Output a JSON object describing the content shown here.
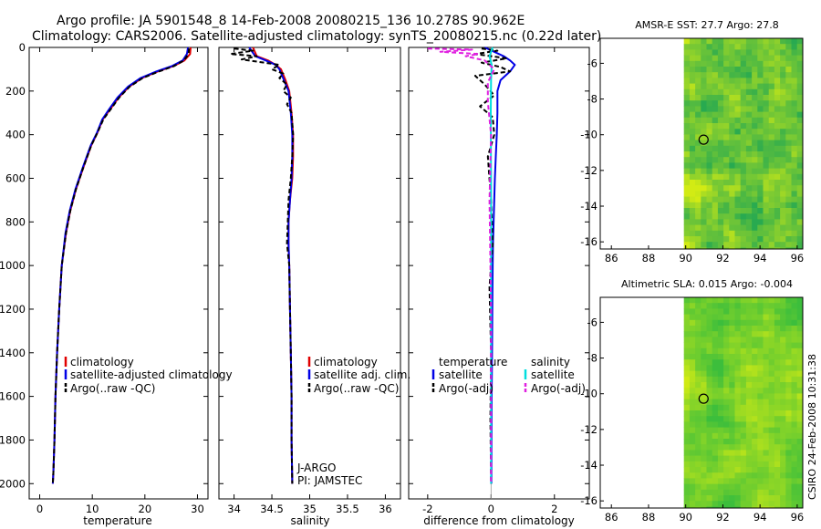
{
  "header": {
    "title_line1": "Argo profile: JA 5901548_8 14-Feb-2008 20080215_136 10.278S 90.962E",
    "title_line2": "Climatology: CARS2006. Satellite-adjusted climatology: synTS_20080215.nc (0.22d later)"
  },
  "side_label": "CSIRO 24-Feb-2008 10:31:38",
  "colors": {
    "climatology": "#e00000",
    "satellite": "#0000e6",
    "argo": "#000000",
    "satellite_cyan": "#00dede",
    "argo_magenta": "#e020e0"
  },
  "chart_data": [
    {
      "type": "line",
      "panel": "temperature",
      "xlabel": "temperature",
      "ylabel": "",
      "xlim": [
        -2,
        32
      ],
      "ylim": [
        2070,
        0
      ],
      "xticks": [
        0,
        10,
        20,
        30
      ],
      "yticks": [
        0,
        200,
        400,
        600,
        800,
        1000,
        1200,
        1400,
        1600,
        1800,
        2000
      ],
      "legend": [
        "climatology",
        "satellite-adjusted climatology",
        "Argo(..raw -QC)"
      ],
      "series": [
        {
          "name": "climatology",
          "color": "#e00000",
          "dash": "",
          "x": [
            28.7,
            28.6,
            27.5,
            25.5,
            22.5,
            19.5,
            17,
            15,
            13.5,
            12,
            11,
            9.8,
            8.3,
            6.9,
            5.8,
            5,
            4.2,
            3.7,
            3.3,
            3,
            2.8,
            2.6,
            2.5
          ],
          "y": [
            0,
            30,
            60,
            85,
            110,
            140,
            180,
            230,
            280,
            330,
            390,
            450,
            550,
            650,
            750,
            850,
            1000,
            1200,
            1400,
            1600,
            1800,
            1950,
            2000
          ]
        },
        {
          "name": "satellite-adjusted climatology",
          "color": "#0000e6",
          "dash": "",
          "x": [
            28.2,
            28,
            27.2,
            25.2,
            22.2,
            19.2,
            16.8,
            14.8,
            13.3,
            11.9,
            10.9,
            9.7,
            8.2,
            6.8,
            5.7,
            4.9,
            4.2,
            3.7,
            3.3,
            3,
            2.8,
            2.6,
            2.5
          ],
          "y": [
            0,
            30,
            60,
            85,
            110,
            140,
            180,
            230,
            280,
            330,
            390,
            450,
            550,
            650,
            750,
            850,
            1000,
            1200,
            1400,
            1600,
            1800,
            1950,
            2000
          ]
        },
        {
          "name": "Argo(..raw -QC)",
          "color": "#000000",
          "dash": "5,3",
          "x": [
            28.4,
            28.3,
            27.4,
            25.6,
            22.7,
            19.6,
            17.1,
            15.1,
            13.6,
            12.1,
            11,
            9.8,
            8.3,
            6.9,
            5.8,
            5,
            4.2,
            3.7,
            3.3,
            3,
            2.8,
            2.6,
            2.5
          ],
          "y": [
            5,
            30,
            60,
            85,
            110,
            140,
            180,
            230,
            280,
            330,
            390,
            450,
            550,
            650,
            750,
            850,
            1000,
            1200,
            1400,
            1600,
            1800,
            1950,
            2000
          ]
        }
      ]
    },
    {
      "type": "line",
      "panel": "salinity",
      "xlabel": "salinity",
      "xlim": [
        33.8,
        36.2
      ],
      "ylim": [
        2070,
        0
      ],
      "xticks": [
        34,
        34.5,
        35,
        35.5,
        36
      ],
      "legend": [
        "climatology",
        "satellite adj. clim.",
        "Argo(..raw -QC)"
      ],
      "annotation": [
        "J-ARGO",
        "PI: JAMSTEC"
      ],
      "series": [
        {
          "name": "climatology",
          "color": "#e00000",
          "dash": "",
          "x": [
            34.25,
            34.3,
            34.45,
            34.55,
            34.62,
            34.68,
            34.73,
            34.76,
            34.78,
            34.78,
            34.77,
            34.74,
            34.72,
            34.72,
            34.73,
            34.74,
            34.75,
            34.76,
            34.76,
            34.77
          ],
          "y": [
            0,
            40,
            60,
            80,
            100,
            150,
            200,
            300,
            400,
            500,
            600,
            700,
            800,
            900,
            1000,
            1200,
            1400,
            1600,
            1800,
            2000
          ]
        },
        {
          "name": "satellite adj. clim.",
          "color": "#0000e6",
          "dash": "",
          "x": [
            34.2,
            34.28,
            34.42,
            34.55,
            34.6,
            34.66,
            34.72,
            34.75,
            34.77,
            34.77,
            34.76,
            34.74,
            34.72,
            34.72,
            34.73,
            34.74,
            34.75,
            34.76,
            34.76,
            34.77
          ],
          "y": [
            0,
            40,
            60,
            80,
            100,
            150,
            200,
            300,
            400,
            500,
            600,
            700,
            800,
            900,
            1000,
            1200,
            1400,
            1600,
            1800,
            2000
          ]
        },
        {
          "name": "Argo(..raw -QC)",
          "color": "#000000",
          "dash": "5,3",
          "x": [
            34.0,
            34.25,
            33.95,
            34.3,
            34.1,
            34.4,
            34.6,
            34.5,
            34.65,
            34.6,
            34.7,
            34.65,
            34.75,
            34.7,
            34.76,
            34.78,
            34.77,
            34.75,
            34.72,
            34.71,
            34.7,
            34.73,
            34.74,
            34.75,
            34.76,
            34.76,
            34.77
          ],
          "y": [
            5,
            15,
            30,
            40,
            55,
            70,
            80,
            100,
            120,
            140,
            170,
            200,
            230,
            260,
            300,
            400,
            500,
            600,
            700,
            800,
            900,
            1000,
            1200,
            1400,
            1600,
            1800,
            2000
          ]
        }
      ]
    },
    {
      "type": "line",
      "panel": "difference",
      "xlabel": "difference from climatology",
      "xlim": [
        -2.6,
        3.1
      ],
      "ylim": [
        2070,
        0
      ],
      "xticks": [
        -2,
        0,
        2
      ],
      "legend_left_title": "temperature",
      "legend_right_title": "salinity",
      "legend_left": [
        "satellite",
        "Argo(-adj)"
      ],
      "legend_right": [
        "satellite",
        "Argo(-adj)"
      ],
      "series": [
        {
          "name": "temperature satellite",
          "color": "#0000e6",
          "dash": "",
          "x": [
            -0.2,
            0.1,
            0.4,
            0.6,
            0.75,
            0.6,
            0.3,
            0.2,
            0.2,
            0.18,
            0.15,
            0.12,
            0.1,
            0.08,
            0.06,
            0.05,
            0.04,
            0.03,
            0.02,
            0.01
          ],
          "y": [
            0,
            20,
            40,
            60,
            80,
            110,
            150,
            200,
            300,
            400,
            500,
            600,
            700,
            800,
            900,
            1000,
            1200,
            1400,
            1600,
            2000
          ]
        },
        {
          "name": "temperature Argo(-adj)",
          "color": "#000000",
          "dash": "5,3",
          "x": [
            -0.3,
            0.2,
            -0.5,
            0.5,
            -0.3,
            0.3,
            0.6,
            -0.5,
            -0.2,
            0.1,
            -0.35,
            0.05,
            0.1,
            -0.1,
            0.0,
            0.05,
            -0.05,
            0.0,
            -0.02,
            0.0
          ],
          "y": [
            5,
            15,
            30,
            50,
            70,
            90,
            110,
            130,
            170,
            220,
            270,
            320,
            400,
            500,
            700,
            900,
            1100,
            1400,
            1700,
            2000
          ]
        },
        {
          "name": "salinity satellite",
          "color": "#00dede",
          "dash": "",
          "x": [
            0.05,
            -0.05,
            0.02,
            0.0,
            -0.01,
            0.0,
            0.0,
            0.0,
            0.0
          ],
          "y": [
            0,
            40,
            80,
            150,
            300,
            600,
            1000,
            1500,
            2000
          ]
        },
        {
          "name": "salinity Argo(-adj)",
          "color": "#e020e0",
          "dash": "5,3",
          "x": [
            -2.0,
            -0.6,
            -1.6,
            -0.4,
            -0.8,
            -0.2,
            0.1,
            -0.1,
            -0.1,
            0.0,
            -0.05,
            0.0,
            0.0
          ],
          "y": [
            5,
            10,
            20,
            30,
            40,
            60,
            100,
            160,
            250,
            400,
            700,
            1200,
            2000
          ]
        }
      ]
    },
    {
      "type": "heatmap",
      "panel": "sst_map",
      "title": "AMSR-E SST: 27.7 Argo: 27.8",
      "xlim": [
        85.4,
        96.3
      ],
      "ylim": [
        -16.4,
        -4.6
      ],
      "xticks": [
        86,
        88,
        90,
        92,
        94,
        96
      ],
      "yticks": [
        -6,
        -8,
        -10,
        -12,
        -14,
        -16
      ],
      "data_xrange": [
        89.9,
        96.3
      ],
      "marker": {
        "lon": 90.962,
        "lat": -10.278
      }
    },
    {
      "type": "heatmap",
      "panel": "sla_map",
      "title": "Altimetric SLA: 0.015 Argo: -0.004",
      "xlim": [
        85.4,
        96.3
      ],
      "ylim": [
        -16.4,
        -4.6
      ],
      "xticks": [
        86,
        88,
        90,
        92,
        94,
        96
      ],
      "yticks": [
        -6,
        -8,
        -10,
        -12,
        -14,
        -16
      ],
      "data_xrange": [
        89.9,
        96.3
      ],
      "marker": {
        "lon": 90.962,
        "lat": -10.278
      }
    }
  ]
}
